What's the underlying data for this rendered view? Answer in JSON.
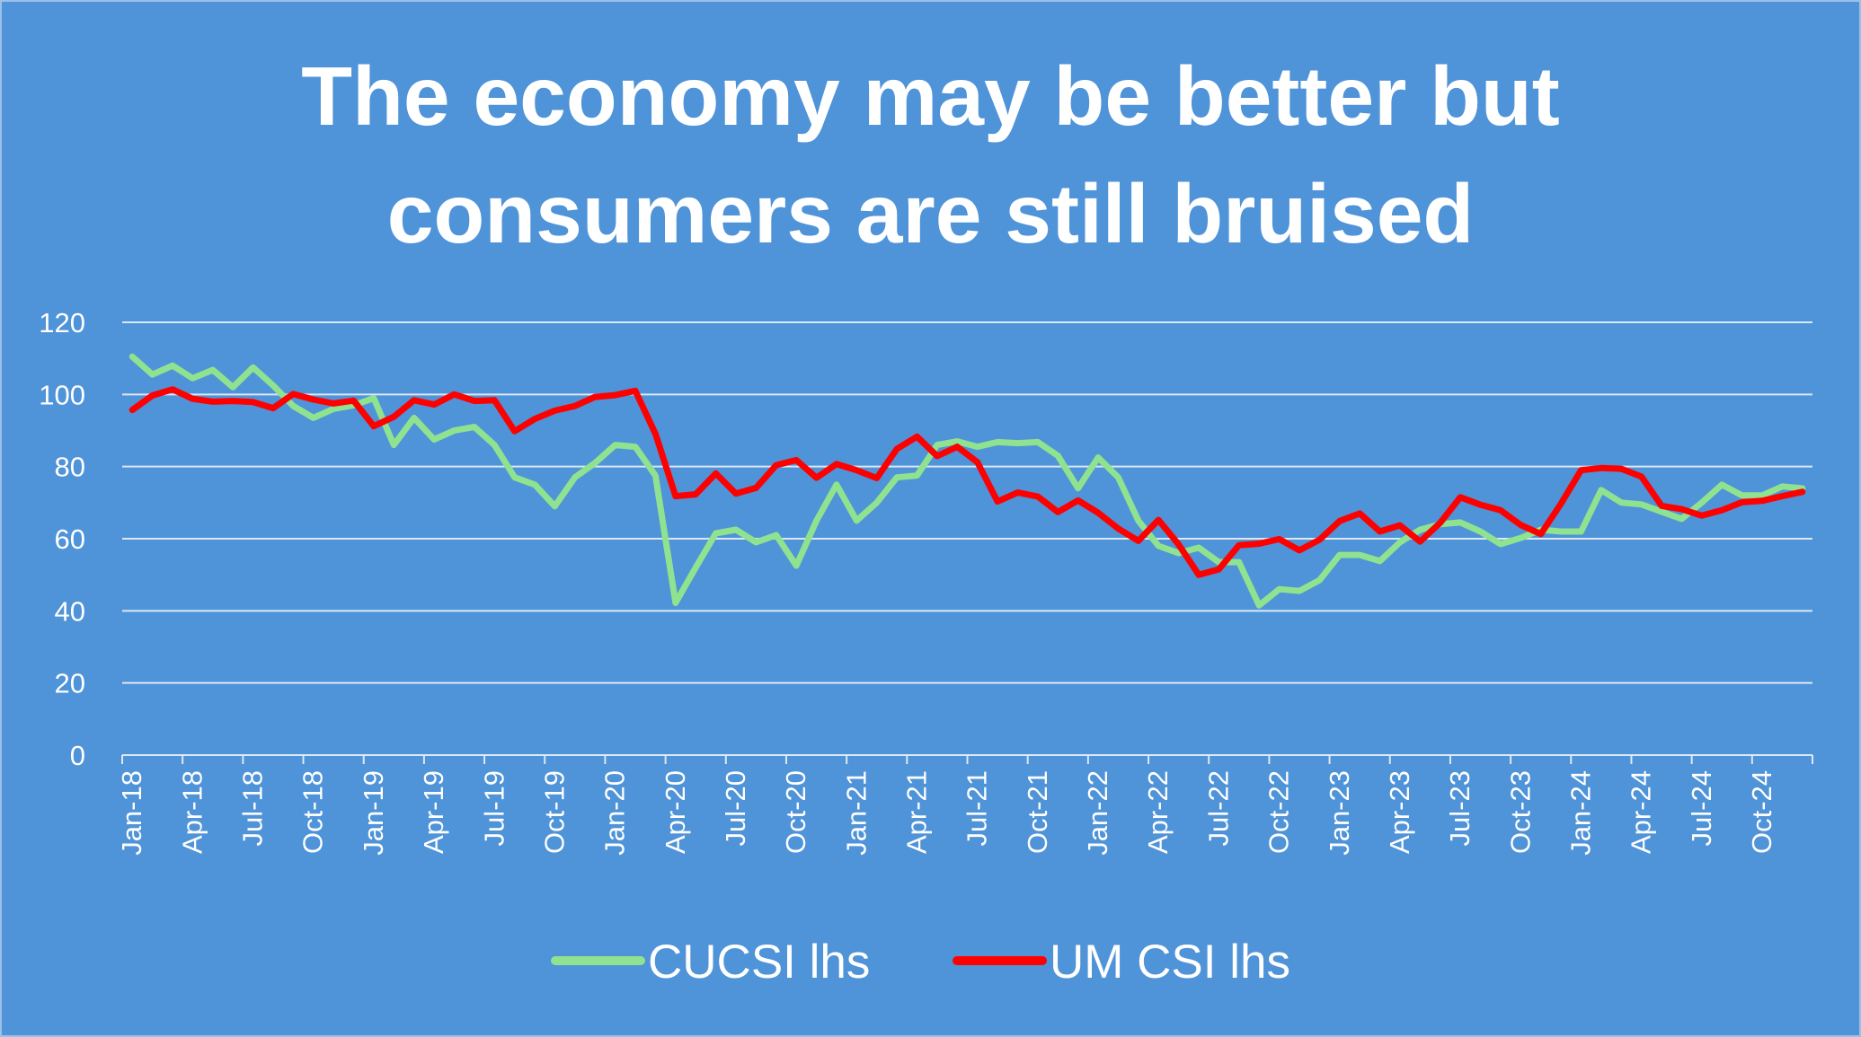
{
  "chart_data": {
    "type": "line",
    "title_lines": [
      "The economy may be better but",
      "consumers are still bruised"
    ],
    "xlabel": "",
    "ylabel": "",
    "ylim": [
      0,
      120
    ],
    "yticks": [
      0,
      20,
      40,
      60,
      80,
      100,
      120
    ],
    "x_tick_labels": [
      "Jan-18",
      "Apr-18",
      "Jul-18",
      "Oct-18",
      "Jan-19",
      "Apr-19",
      "Jul-19",
      "Oct-19",
      "Jan-20",
      "Apr-20",
      "Jul-20",
      "Oct-20",
      "Jan-21",
      "Apr-21",
      "Jul-21",
      "Oct-21",
      "Jan-22",
      "Apr-22",
      "Jul-22",
      "Oct-22",
      "Jan-23",
      "Apr-23",
      "Jul-23",
      "Oct-23",
      "Jan-24",
      "Apr-24",
      "Jul-24",
      "Oct-24"
    ],
    "grid": true,
    "legend_position": "bottom",
    "series": [
      {
        "name": "CUCSI lhs",
        "color": "#8fe28f",
        "values": [
          110.5,
          105.5,
          108,
          104.5,
          106.8,
          102,
          107.5,
          102.5,
          96.8,
          93.5,
          96,
          97,
          99,
          86,
          93.5,
          87.5,
          90,
          91,
          86,
          77,
          75,
          69,
          77,
          81,
          86,
          85.5,
          77.5,
          42.2,
          52,
          61.5,
          62.5,
          59,
          61,
          52.5,
          65,
          75,
          65,
          70,
          77,
          77.5,
          86,
          87,
          85.5,
          86.8,
          86.5,
          86.8,
          83,
          74,
          82.5,
          77,
          65,
          58,
          56,
          57.5,
          53.5,
          53.5,
          41.5,
          46,
          45.5,
          48.5,
          55.5,
          55.5,
          53.8,
          59,
          62.5,
          64,
          64.5,
          62,
          58.5,
          60.2,
          62.5,
          62,
          62,
          73.5,
          70,
          69.5,
          67.5,
          65.5,
          70,
          75,
          72,
          72,
          74.5,
          74
        ]
      },
      {
        "name": "UM CSI lhs",
        "color": "#ff0000",
        "values": [
          95.7,
          99.7,
          101.4,
          98.8,
          98,
          98.2,
          97.9,
          96.2,
          100.1,
          98.6,
          97.5,
          98.3,
          91.2,
          93.8,
          98.4,
          97.2,
          100,
          98.2,
          98.4,
          89.8,
          93.2,
          95.5,
          96.8,
          99.3,
          99.8,
          101,
          89.1,
          71.8,
          72.3,
          78.1,
          72.5,
          74.1,
          80.4,
          81.8,
          76.9,
          80.7,
          79,
          76.8,
          84.9,
          88.3,
          82.9,
          85.5,
          81.2,
          70.3,
          72.8,
          71.7,
          67.4,
          70.6,
          67.2,
          62.8,
          59.4,
          65.2,
          58.4,
          50,
          51.5,
          58.2,
          58.6,
          59.9,
          56.8,
          59.7,
          64.9,
          67,
          62,
          63.7,
          59.2,
          64.4,
          71.5,
          69.4,
          67.9,
          63.8,
          61.3,
          69.7,
          79,
          79.6,
          79.4,
          77.2,
          69.1,
          68.2,
          66.4,
          67.9,
          70.1,
          70.5,
          71.8,
          73
        ]
      }
    ]
  }
}
